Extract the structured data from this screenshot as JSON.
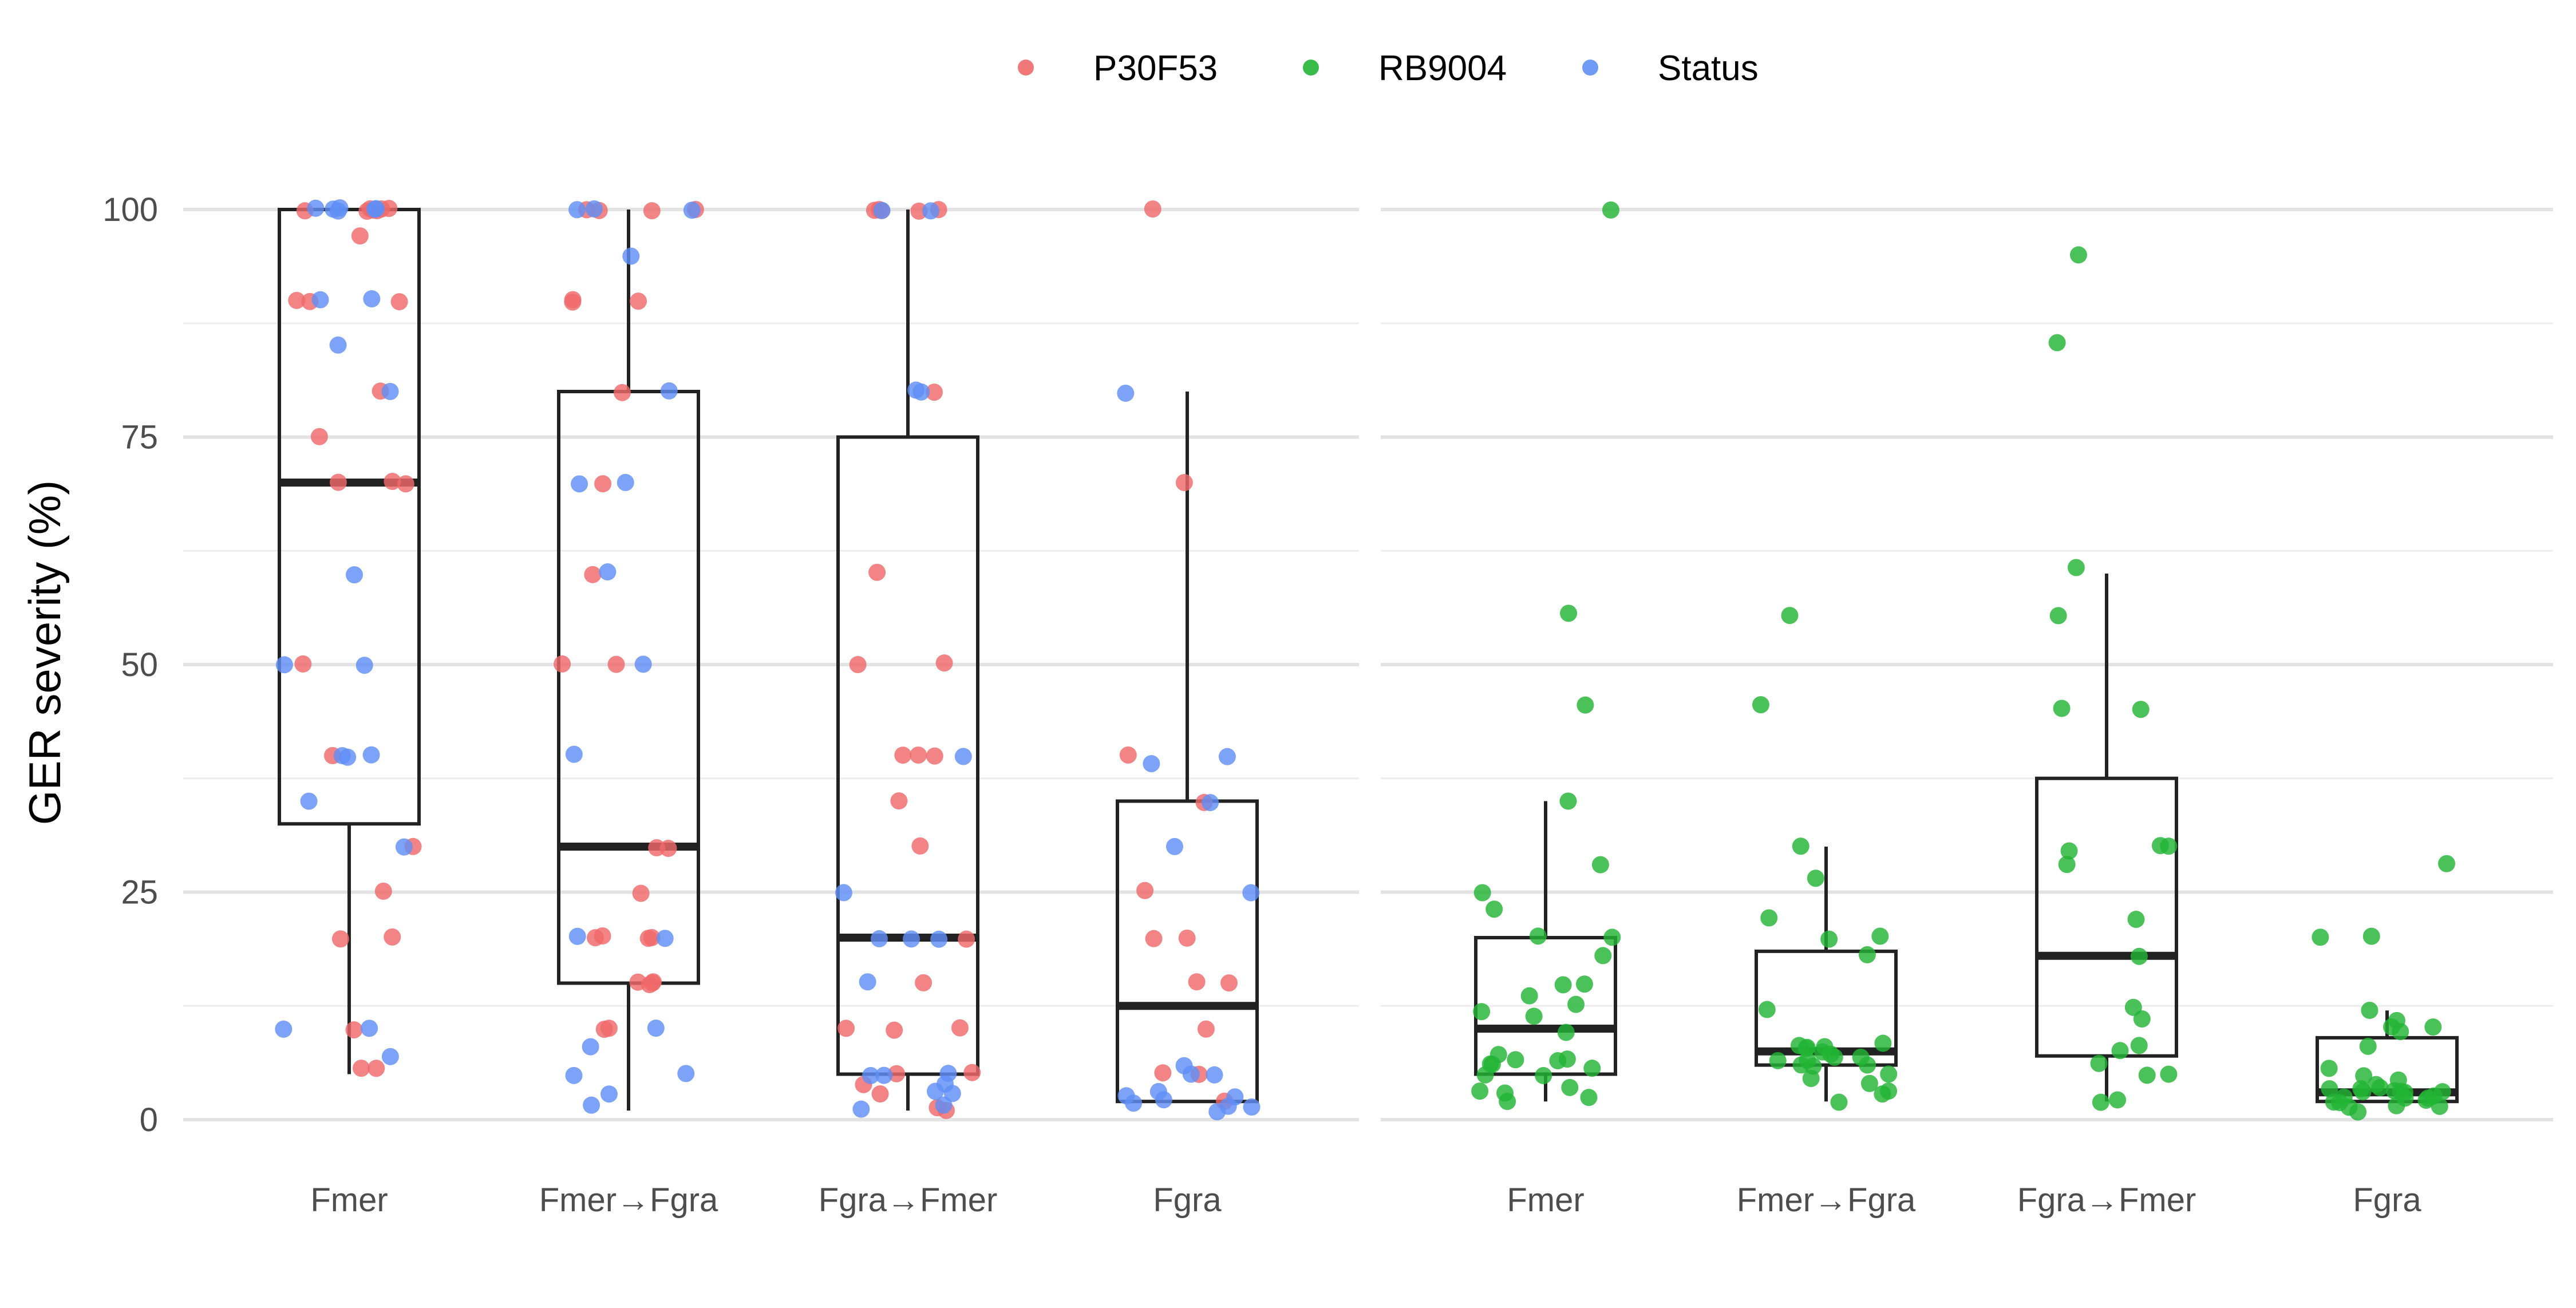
{
  "chart_data": {
    "type": "box",
    "ylabel": "GER severity (%)",
    "ylim": [
      -5,
      105
    ],
    "yticks": [
      0,
      25,
      50,
      75,
      100
    ],
    "grid": true,
    "legend_position": "top",
    "legend": [
      {
        "name": "P30F53",
        "color": "#F0696A"
      },
      {
        "name": "RB9004",
        "color": "#22B434"
      },
      {
        "name": "Status",
        "color": "#5F8FF5"
      }
    ],
    "categories": [
      "Fmer",
      "Fmer→Fgra",
      "Fgra→Fmer",
      "Fgra"
    ],
    "panels": [
      {
        "name": "left",
        "boxes": [
          {
            "category": "Fmer",
            "min": 5,
            "q1": 32.5,
            "median": 70,
            "q3": 100,
            "max": 100
          },
          {
            "category": "Fmer→Fgra",
            "min": 1,
            "q1": 15,
            "median": 30,
            "q3": 80,
            "max": 100
          },
          {
            "category": "Fgra→Fmer",
            "min": 1,
            "q1": 5,
            "median": 20,
            "q3": 75,
            "max": 100
          },
          {
            "category": "Fgra",
            "min": 2,
            "q1": 2,
            "median": 12.5,
            "q3": 35,
            "max": 80
          }
        ],
        "points": [
          {
            "category": "Fmer",
            "series": "P30F53",
            "values": [
              100,
              100,
              100,
              100,
              100,
              100,
              100,
              97,
              90,
              90,
              90,
              80,
              75,
              70,
              70,
              70,
              50,
              40,
              30,
              25,
              20,
              20,
              10,
              5.5,
              5.5
            ]
          },
          {
            "category": "Fmer",
            "series": "Status",
            "values": [
              100,
              100,
              100,
              100,
              100,
              100,
              90,
              90,
              85,
              80,
              60,
              50,
              50,
              40,
              40,
              40,
              35,
              30,
              10,
              10,
              7
            ]
          },
          {
            "category": "Fmer→Fgra",
            "series": "P30F53",
            "values": [
              100,
              100,
              100,
              100,
              90,
              90,
              90,
              80,
              70,
              60,
              50,
              50,
              30,
              30,
              25,
              20,
              20,
              20,
              20,
              15,
              15,
              15,
              15,
              10,
              10
            ]
          },
          {
            "category": "Fmer→Fgra",
            "series": "Status",
            "values": [
              100,
              100,
              100,
              95,
              80,
              70,
              70,
              60,
              50,
              40,
              20,
              20,
              10,
              8,
              5,
              5,
              3,
              1.5
            ]
          },
          {
            "category": "Fgra→Fmer",
            "series": "P30F53",
            "values": [
              100,
              100,
              100,
              100,
              100,
              80,
              60,
              50,
              50,
              40,
              40,
              40,
              35,
              30,
              20,
              15,
              10,
              10,
              10,
              5,
              5,
              4,
              3,
              1.5,
              1
            ]
          },
          {
            "category": "Fgra→Fmer",
            "series": "Status",
            "values": [
              100,
              100,
              80,
              80,
              40,
              25,
              20,
              20,
              20,
              15,
              5,
              5,
              5,
              4,
              3,
              3,
              1.5,
              1
            ]
          },
          {
            "category": "Fgra",
            "series": "P30F53",
            "values": [
              100,
              70,
              40,
              35,
              25,
              20,
              20,
              15,
              15,
              10,
              5,
              5,
              2
            ]
          },
          {
            "category": "Fgra",
            "series": "Status",
            "values": [
              80,
              40,
              39,
              35,
              30,
              25,
              6,
              5,
              5,
              3,
              2.5,
              2.5,
              2,
              2,
              1.5,
              1.5,
              1
            ]
          }
        ]
      },
      {
        "name": "right",
        "boxes": [
          {
            "category": "Fmer",
            "min": 2,
            "q1": 5,
            "median": 10,
            "q3": 20,
            "max": 35
          },
          {
            "category": "Fmer→Fgra",
            "min": 2,
            "q1": 6,
            "median": 7.5,
            "q3": 18.5,
            "max": 30
          },
          {
            "category": "Fgra→Fmer",
            "min": 2,
            "q1": 7,
            "median": 18,
            "q3": 37.5,
            "max": 60
          },
          {
            "category": "Fgra",
            "min": 2,
            "q1": 2,
            "median": 3,
            "q3": 9,
            "max": 12
          }
        ],
        "points": [
          {
            "category": "Fmer",
            "series": "RB9004",
            "values": [
              100,
              55.5,
              45.5,
              35,
              28,
              25,
              23,
              20,
              20,
              18,
              15,
              15,
              13.5,
              12.5,
              12,
              11.5,
              9.5,
              7,
              6.5,
              6.5,
              6.5,
              6,
              6,
              5.5,
              5,
              5,
              3.5,
              3,
              3,
              2.5,
              2
            ]
          },
          {
            "category": "Fmer→Fgra",
            "series": "RB9004",
            "values": [
              55.5,
              45.5,
              30,
              26.5,
              22,
              20,
              20,
              18,
              12,
              8.5,
              8,
              8,
              8,
              8,
              7.5,
              7,
              7,
              7,
              6.5,
              6.5,
              6,
              6,
              6,
              5,
              4.5,
              4,
              3,
              3,
              2
            ]
          },
          {
            "category": "Fgra→Fmer",
            "series": "RB9004",
            "values": [
              95,
              85.5,
              60.5,
              55.5,
              45,
              45,
              30,
              30,
              29.5,
              28,
              22,
              18,
              12.5,
              11,
              8,
              7.5,
              6,
              5,
              5,
              2,
              2
            ]
          },
          {
            "category": "Fgra",
            "series": "RB9004",
            "values": [
              28,
              20,
              20,
              12,
              11,
              10,
              10,
              9.5,
              8,
              5.5,
              5,
              4.5,
              4,
              3.5,
              3.5,
              3.5,
              3,
              3,
              3,
              3,
              3,
              2.5,
              2.5,
              2.5,
              2.5,
              2,
              2,
              2,
              1.5,
              1.5,
              1.5,
              1
            ]
          }
        ]
      }
    ]
  }
}
